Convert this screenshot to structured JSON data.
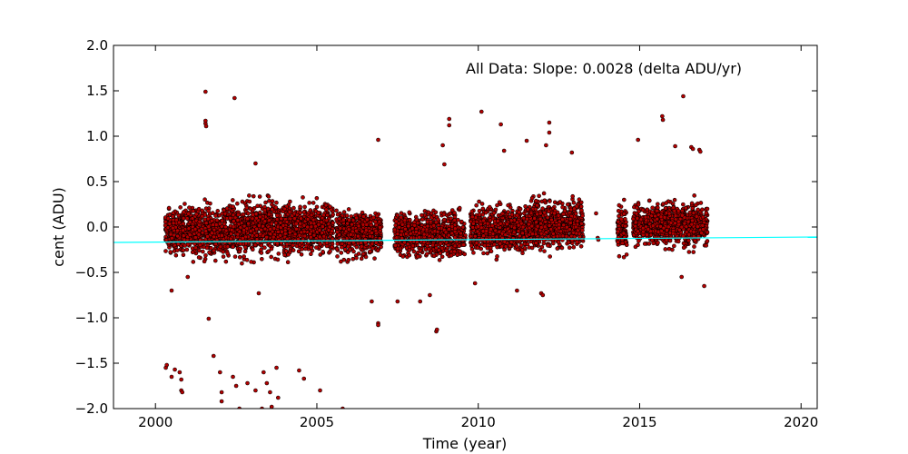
{
  "chart_data": {
    "type": "scatter",
    "xlabel": "Time (year)",
    "ylabel": "cent (ADU)",
    "xlim": [
      1998.7,
      2020.5
    ],
    "ylim": [
      -2.0,
      2.0
    ],
    "x_ticks": [
      2000,
      2005,
      2010,
      2015,
      2020
    ],
    "x_tick_labels": [
      "2000",
      "2005",
      "2010",
      "2015",
      "2020"
    ],
    "y_ticks": [
      2.0,
      1.5,
      1.0,
      0.5,
      0.0,
      -0.5,
      -1.0,
      -1.5,
      -2.0
    ],
    "y_tick_labels": [
      "2.0",
      "1.5",
      "1.0",
      "0.5",
      "0.0",
      "−0.5",
      "−1.0",
      "−1.5",
      "−2.0"
    ],
    "annotation": "All Data: Slope:  0.0028 (delta ADU/yr)",
    "grid": false,
    "legend": "none",
    "colors": {
      "points": "#b30000",
      "point_edge": "#000000",
      "fit_line": "#00ffff"
    },
    "fit_line": {
      "x": [
        1998.7,
        2020.5
      ],
      "y": [
        -0.17,
        -0.11
      ]
    },
    "clusters": [
      {
        "x": [
          2000.3,
          2000.85
        ],
        "center": -0.05,
        "spread": 0.22,
        "slope": 0.0,
        "count": 220
      },
      {
        "x": [
          2000.85,
          2002.3
        ],
        "center": -0.04,
        "spread": 0.24,
        "slope": 0.0,
        "count": 520
      },
      {
        "x": [
          2002.3,
          2004.3
        ],
        "center": -0.02,
        "spread": 0.24,
        "slope": 0.0,
        "count": 800
      },
      {
        "x": [
          2004.3,
          2005.5
        ],
        "center": -0.02,
        "spread": 0.23,
        "slope": 0.0,
        "count": 420
      },
      {
        "x": [
          2005.6,
          2007.0
        ],
        "center": -0.07,
        "spread": 0.2,
        "slope": 0.0,
        "count": 480
      },
      {
        "x": [
          2007.4,
          2009.6
        ],
        "center": -0.08,
        "spread": 0.2,
        "slope": 0.0,
        "count": 780
      },
      {
        "x": [
          2009.75,
          2011.5
        ],
        "center": -0.03,
        "spread": 0.21,
        "slope": 0.0,
        "count": 620
      },
      {
        "x": [
          2011.5,
          2013.25
        ],
        "center": 0.02,
        "spread": 0.22,
        "slope": 0.0,
        "count": 640
      },
      {
        "x": [
          2014.3,
          2014.6
        ],
        "center": -0.05,
        "spread": 0.22,
        "slope": 0.0,
        "count": 110
      },
      {
        "x": [
          2014.8,
          2017.1
        ],
        "center": 0.03,
        "spread": 0.2,
        "slope": 0.0,
        "count": 820
      }
    ],
    "outliers": [
      {
        "x": 2000.32,
        "y": -1.55
      },
      {
        "x": 2000.35,
        "y": -1.52
      },
      {
        "x": 2000.5,
        "y": -1.65
      },
      {
        "x": 2000.6,
        "y": -1.57
      },
      {
        "x": 2000.75,
        "y": -1.6
      },
      {
        "x": 2000.8,
        "y": -1.68
      },
      {
        "x": 2000.8,
        "y": -1.8
      },
      {
        "x": 2000.83,
        "y": -1.82
      },
      {
        "x": 2001.65,
        "y": -1.01
      },
      {
        "x": 2001.8,
        "y": -1.42
      },
      {
        "x": 2002.0,
        "y": -1.6
      },
      {
        "x": 2002.05,
        "y": -1.82
      },
      {
        "x": 2002.05,
        "y": -1.92
      },
      {
        "x": 2002.4,
        "y": -1.65
      },
      {
        "x": 2002.5,
        "y": -1.75
      },
      {
        "x": 2002.85,
        "y": -1.72
      },
      {
        "x": 2003.1,
        "y": -1.8
      },
      {
        "x": 2003.35,
        "y": -1.6
      },
      {
        "x": 2003.45,
        "y": -1.72
      },
      {
        "x": 2003.55,
        "y": -1.82
      },
      {
        "x": 2003.6,
        "y": -1.98
      },
      {
        "x": 2003.75,
        "y": -1.55
      },
      {
        "x": 2003.8,
        "y": -1.88
      },
      {
        "x": 2004.45,
        "y": -1.58
      },
      {
        "x": 2004.6,
        "y": -1.67
      },
      {
        "x": 2005.1,
        "y": -1.8
      },
      {
        "x": 2005.8,
        "y": -2.0
      },
      {
        "x": 2002.6,
        "y": -2.0
      },
      {
        "x": 2003.3,
        "y": -2.0
      },
      {
        "x": 2001.55,
        "y": 1.49
      },
      {
        "x": 2001.55,
        "y": 1.14
      },
      {
        "x": 2001.55,
        "y": 1.17
      },
      {
        "x": 2001.57,
        "y": 1.11
      },
      {
        "x": 2002.45,
        "y": 1.42
      },
      {
        "x": 2003.1,
        "y": 0.7
      },
      {
        "x": 2006.9,
        "y": 0.96
      },
      {
        "x": 2006.9,
        "y": -1.06
      },
      {
        "x": 2006.9,
        "y": -1.08
      },
      {
        "x": 2006.7,
        "y": -0.82
      },
      {
        "x": 2008.7,
        "y": -1.15
      },
      {
        "x": 2008.72,
        "y": -1.13
      },
      {
        "x": 2008.5,
        "y": -0.75
      },
      {
        "x": 2008.95,
        "y": 0.69
      },
      {
        "x": 2009.1,
        "y": 1.19
      },
      {
        "x": 2009.1,
        "y": 1.12
      },
      {
        "x": 2008.9,
        "y": 0.9
      },
      {
        "x": 2010.1,
        "y": 1.27
      },
      {
        "x": 2010.7,
        "y": 1.13
      },
      {
        "x": 2010.8,
        "y": 0.84
      },
      {
        "x": 2011.5,
        "y": 0.95
      },
      {
        "x": 2012.2,
        "y": 1.15
      },
      {
        "x": 2012.2,
        "y": 1.04
      },
      {
        "x": 2012.1,
        "y": 0.9
      },
      {
        "x": 2012.9,
        "y": 0.82
      },
      {
        "x": 2011.2,
        "y": -0.7
      },
      {
        "x": 2011.95,
        "y": -0.73
      },
      {
        "x": 2012.0,
        "y": -0.75
      },
      {
        "x": 2013.65,
        "y": 0.15
      },
      {
        "x": 2013.7,
        "y": -0.12
      },
      {
        "x": 2013.72,
        "y": -0.14
      },
      {
        "x": 2014.95,
        "y": 0.96
      },
      {
        "x": 2015.7,
        "y": 1.22
      },
      {
        "x": 2015.72,
        "y": 1.18
      },
      {
        "x": 2016.1,
        "y": 0.89
      },
      {
        "x": 2016.35,
        "y": 1.44
      },
      {
        "x": 2016.6,
        "y": 0.88
      },
      {
        "x": 2016.65,
        "y": 0.86
      },
      {
        "x": 2016.85,
        "y": 0.85
      },
      {
        "x": 2016.88,
        "y": 0.83
      },
      {
        "x": 2017.0,
        "y": -0.65
      },
      {
        "x": 2016.3,
        "y": -0.55
      },
      {
        "x": 2000.5,
        "y": -0.7
      },
      {
        "x": 2001.0,
        "y": -0.55
      },
      {
        "x": 2003.2,
        "y": -0.73
      },
      {
        "x": 2007.5,
        "y": -0.82
      },
      {
        "x": 2008.2,
        "y": -0.82
      },
      {
        "x": 2009.9,
        "y": -0.62
      }
    ]
  }
}
